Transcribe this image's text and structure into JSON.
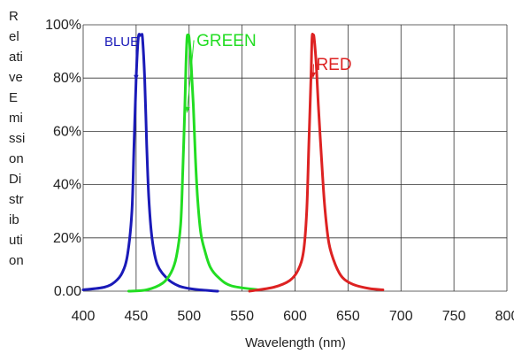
{
  "chart_data": {
    "type": "line",
    "title": "",
    "xlabel": "Wavelength (nm)",
    "ylabel_lines": [
      "R",
      "el",
      "ati",
      "ve",
      "E",
      "mi",
      "ssi",
      "on",
      "Di",
      "str",
      "ib",
      "uti",
      "on"
    ],
    "xlim": [
      400,
      800
    ],
    "ylim": [
      0,
      100
    ],
    "x_ticks": [
      400,
      450,
      500,
      550,
      600,
      650,
      700,
      750,
      800
    ],
    "y_tick_values": [
      0,
      20,
      40,
      60,
      80,
      100
    ],
    "y_tick_labels": [
      "0.00",
      "20%",
      "40%",
      "60%",
      "80%",
      "100%"
    ],
    "grid": true,
    "legend": "none",
    "series": [
      {
        "name": "BLUE",
        "color": "#1a1ab8",
        "x": [
          400,
          420,
          430,
          437,
          442,
          446,
          448,
          450,
          452,
          454,
          455,
          456,
          458,
          460,
          462,
          465,
          470,
          480,
          490,
          500,
          510,
          527
        ],
        "y": [
          0.5,
          1.5,
          3.5,
          7,
          14,
          30,
          55,
          80,
          95,
          96,
          96,
          95,
          80,
          55,
          35,
          20,
          10,
          4.5,
          2,
          1,
          0.5,
          0
        ]
      },
      {
        "name": "GREEN",
        "color": "#22dd22",
        "x": [
          443,
          460,
          475,
          483,
          488,
          492,
          494,
          496,
          497,
          498,
          499,
          500,
          502,
          504,
          506,
          508,
          511,
          515,
          520,
          528,
          540,
          565
        ],
        "y": [
          0,
          0.5,
          3,
          7,
          13,
          25,
          45,
          70,
          85,
          95,
          96,
          95,
          85,
          70,
          50,
          35,
          22,
          15,
          9,
          5,
          2,
          0.5
        ]
      },
      {
        "name": "RED",
        "color": "#dd2222",
        "x": [
          557,
          580,
          595,
          603,
          608,
          611,
          613,
          615,
          616,
          617,
          618,
          620,
          622,
          625,
          628,
          632,
          638,
          645,
          655,
          670,
          683
        ],
        "y": [
          0,
          1.5,
          4,
          8,
          15,
          30,
          55,
          80,
          95,
          96,
          95,
          85,
          70,
          50,
          32,
          18,
          10,
          5,
          2.5,
          1,
          0.5
        ]
      }
    ],
    "annotations": [
      {
        "text": "BLUE",
        "series": "BLUE",
        "color": "#1a1ab8",
        "font_px": 15,
        "label_x": 420,
        "label_y": 92,
        "arrow_to": [
          450,
          79
        ]
      },
      {
        "text": "GREEN",
        "series": "GREEN",
        "color": "#22dd22",
        "font_px": 19,
        "label_x": 507,
        "label_y": 92,
        "arrow_to": [
          498,
          67
        ]
      },
      {
        "text": "RED",
        "series": "RED",
        "color": "#dd2222",
        "font_px": 19,
        "label_x": 620,
        "label_y": 83,
        "arrow_to": [
          617,
          80
        ]
      }
    ]
  }
}
